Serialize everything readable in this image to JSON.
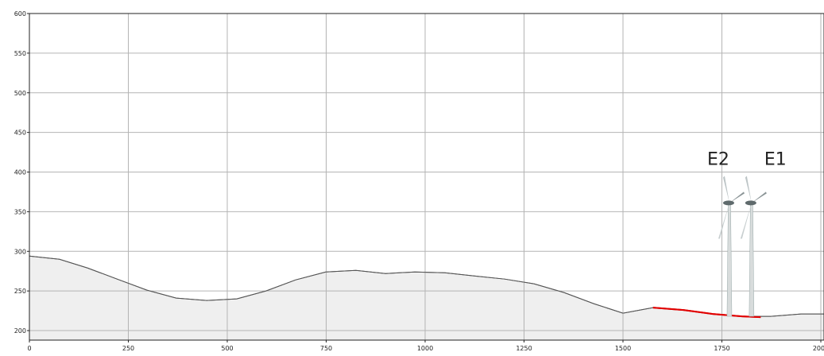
{
  "chart_data": {
    "type": "area",
    "xlim": [
      0,
      2008
    ],
    "ylim": [
      188,
      600
    ],
    "xticks": [
      0,
      250,
      500,
      750,
      1000,
      1250,
      1500,
      1750,
      2000
    ],
    "yticks": [
      200,
      250,
      300,
      350,
      400,
      450,
      500,
      550,
      600
    ],
    "grid": true,
    "series": [
      {
        "color": "#555555",
        "fill": "#efefef",
        "x": [
          0,
          76,
          147,
          227,
          297,
          371,
          448,
          524,
          598,
          673,
          749,
          825,
          900,
          974,
          1050,
          1124,
          1201,
          1275,
          1351,
          1426,
          1500,
          1576,
          1653,
          1727,
          1801,
          1873,
          1950,
          2008
        ],
        "values": [
          294,
          290,
          279,
          264,
          251,
          241,
          238,
          240,
          250,
          264,
          274,
          276,
          272,
          274,
          273,
          269,
          265,
          259,
          248,
          234,
          222,
          229,
          226,
          221,
          218,
          218,
          221,
          221
        ]
      },
      {
        "color": "#e00000",
        "x": [
          1576,
          1653,
          1727,
          1801,
          1848
        ],
        "values": [
          229,
          226,
          221,
          218,
          217
        ]
      }
    ],
    "turbines": [
      {
        "label": "E2",
        "x": 1769,
        "base": 218,
        "hub": 361
      },
      {
        "label": "E1",
        "x": 1825,
        "base": 218,
        "hub": 361
      }
    ]
  }
}
